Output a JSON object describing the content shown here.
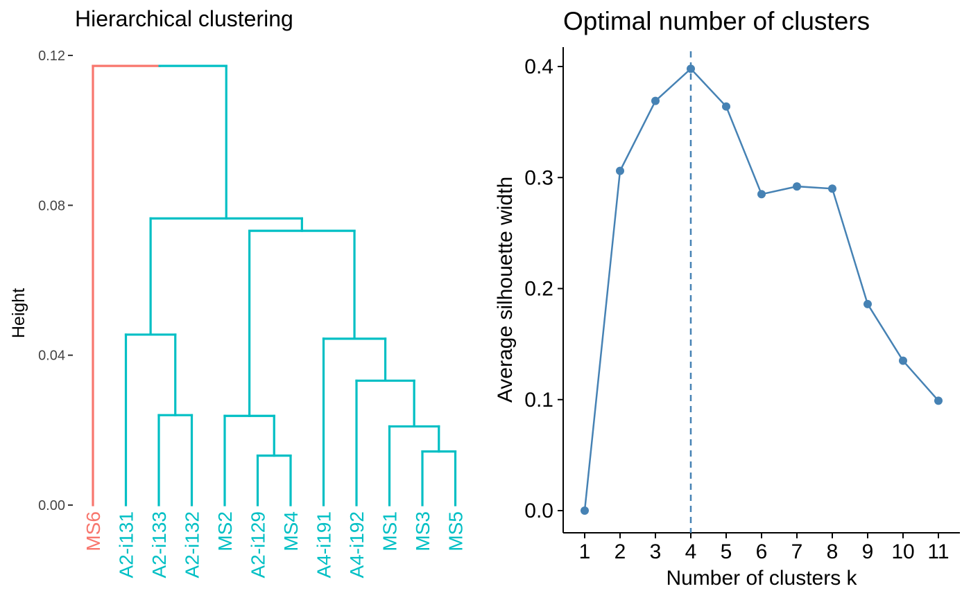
{
  "chart_data": [
    {
      "type": "dendrogram",
      "title": "Hierarchical clustering",
      "ylabel": "Height",
      "ylim": [
        0,
        0.12
      ],
      "yticks": [
        "0.00",
        "0.04",
        "0.08",
        "0.12"
      ],
      "ytick_values": [
        0,
        0.04,
        0.08,
        0.12
      ],
      "leaves": [
        {
          "label": "MS6",
          "color": "#F8766D"
        },
        {
          "label": "A2-i131",
          "color": "#00BFC4"
        },
        {
          "label": "A2-i133",
          "color": "#00BFC4"
        },
        {
          "label": "A2-i132",
          "color": "#00BFC4"
        },
        {
          "label": "MS2",
          "color": "#00BFC4"
        },
        {
          "label": "A2-i129",
          "color": "#00BFC4"
        },
        {
          "label": "MS4",
          "color": "#00BFC4"
        },
        {
          "label": "A4-i191",
          "color": "#00BFC4"
        },
        {
          "label": "A4-i192",
          "color": "#00BFC4"
        },
        {
          "label": "MS1",
          "color": "#00BFC4"
        },
        {
          "label": "MS3",
          "color": "#00BFC4"
        },
        {
          "label": "MS5",
          "color": "#00BFC4"
        }
      ],
      "merges": [
        {
          "left": 2,
          "right": 3,
          "height": 0.024,
          "color": "#00BFC4"
        },
        {
          "left": 1,
          "right": "m0",
          "height": 0.0455,
          "color": "#00BFC4"
        },
        {
          "left": 5,
          "right": 6,
          "height": 0.0132,
          "color": "#00BFC4"
        },
        {
          "left": 4,
          "right": "m2",
          "height": 0.0238,
          "color": "#00BFC4"
        },
        {
          "left": 10,
          "right": 11,
          "height": 0.0143,
          "color": "#00BFC4"
        },
        {
          "left": 9,
          "right": "m4",
          "height": 0.021,
          "color": "#00BFC4"
        },
        {
          "left": 8,
          "right": "m5",
          "height": 0.0332,
          "color": "#00BFC4"
        },
        {
          "left": 7,
          "right": "m6",
          "height": 0.0444,
          "color": "#00BFC4"
        },
        {
          "left": "m3",
          "right": "m7",
          "height": 0.0732,
          "color": "#00BFC4"
        },
        {
          "left": "m1",
          "right": "m8",
          "height": 0.0765,
          "color": "#00BFC4"
        },
        {
          "left": 0,
          "right": "m9",
          "height": 0.1172,
          "color": "mixed"
        }
      ],
      "colors": {
        "group1": "#F8766D",
        "group2": "#00BFC4"
      }
    },
    {
      "type": "line",
      "title": "Optimal number of clusters",
      "xlabel": "Number of clusters k",
      "ylabel": "Average silhouette width",
      "x": [
        "1",
        "2",
        "3",
        "4",
        "5",
        "6",
        "7",
        "8",
        "9",
        "10",
        "11"
      ],
      "series": [
        {
          "values": [
            0.0,
            0.306,
            0.369,
            0.398,
            0.364,
            0.285,
            0.292,
            0.29,
            0.186,
            0.135,
            0.099
          ]
        }
      ],
      "ylim": [
        0,
        0.4
      ],
      "yticks": [
        "0.0",
        "0.1",
        "0.2",
        "0.3",
        "0.4"
      ],
      "ytick_values": [
        0,
        0.1,
        0.2,
        0.3,
        0.4
      ],
      "optimal_k": 4,
      "line_color": "#4682B4",
      "grid": false
    }
  ]
}
